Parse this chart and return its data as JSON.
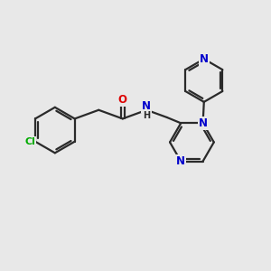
{
  "background_color": "#e8e8e8",
  "bond_color": "#2a2a2a",
  "bond_width": 1.6,
  "atom_colors": {
    "O": "#dd0000",
    "N": "#0000cc",
    "Cl": "#00aa00",
    "H": "#2a2a2a",
    "C": "#2a2a2a"
  },
  "font_size": 8.5,
  "fig_width": 3.0,
  "fig_height": 3.0,
  "dpi": 100
}
